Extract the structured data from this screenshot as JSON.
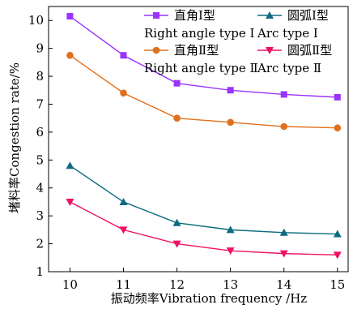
{
  "chart_data": {
    "type": "line",
    "title": "",
    "xlabel": "振动频率Vibration frequency /Hz",
    "ylabel": "堵料率Congestion rate/%",
    "x": [
      10,
      11,
      12,
      13,
      14,
      15
    ],
    "xlim": [
      9.6,
      15.2
    ],
    "ylim": [
      1,
      10.5
    ],
    "xticks": [
      10,
      11,
      12,
      13,
      14,
      15
    ],
    "yticks": [
      1,
      2,
      3,
      4,
      5,
      6,
      7,
      8,
      9,
      10
    ],
    "grid": false,
    "legend_position": "top-right",
    "series": [
      {
        "name": "直角Ⅰ型",
        "name_en": "Right angle type Ⅰ",
        "color": "#9933ff",
        "marker": "square",
        "values": [
          10.15,
          8.75,
          7.75,
          7.5,
          7.35,
          7.25
        ]
      },
      {
        "name": "圆弧Ⅰ型",
        "name_en": "Arc type Ⅰ",
        "color": "#0e6b80",
        "marker": "triangle-up",
        "values": [
          4.8,
          3.5,
          2.75,
          2.5,
          2.4,
          2.35
        ]
      },
      {
        "name": "直角Ⅱ型",
        "name_en": "Right angle type Ⅱ",
        "color": "#e0701c",
        "marker": "circle",
        "values": [
          8.75,
          7.4,
          6.5,
          6.35,
          6.2,
          6.15
        ]
      },
      {
        "name": "圆弧Ⅱ型",
        "name_en": "Arc type Ⅱ",
        "color": "#ee1166",
        "marker": "triangle-down",
        "values": [
          3.5,
          2.5,
          2.0,
          1.75,
          1.65,
          1.6
        ]
      }
    ]
  }
}
